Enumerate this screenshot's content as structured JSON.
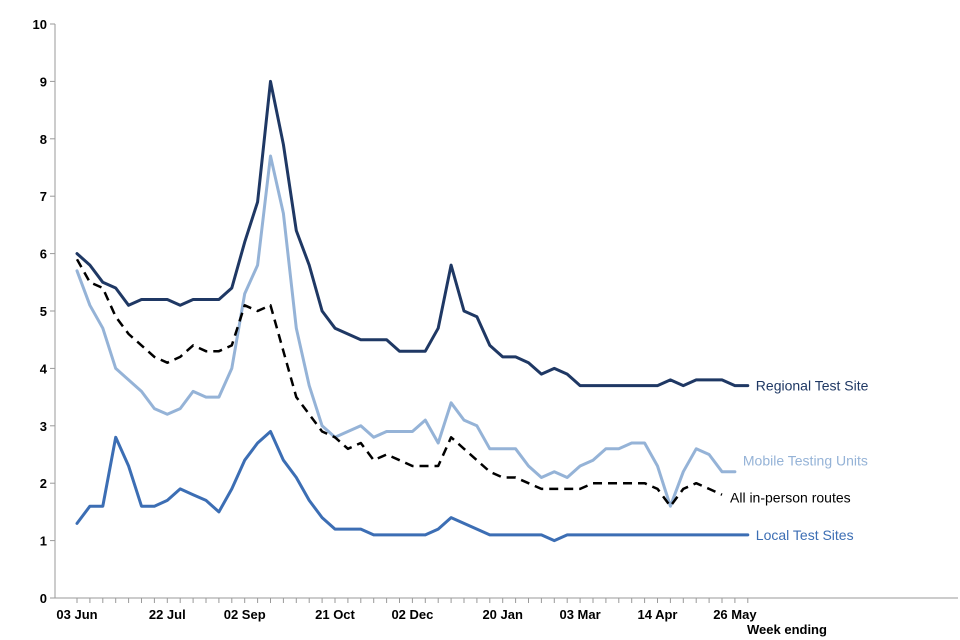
{
  "chart_data": {
    "type": "line",
    "title": "",
    "xlabel": "Week ending",
    "ylabel": "",
    "ylim": [
      0,
      10
    ],
    "yticks": [
      "0",
      "1",
      "2",
      "3",
      "4",
      "5",
      "6",
      "7",
      "8",
      "9",
      "10"
    ],
    "xtick_labels": [
      "03 Jun",
      "22 Jul",
      "02 Sep",
      "21 Oct",
      "02 Dec",
      "20 Jan",
      "03 Mar",
      "14 Apr",
      "26 May"
    ],
    "xtick_positions": [
      0,
      7,
      13,
      20,
      26,
      33,
      39,
      45,
      51
    ],
    "grid": false,
    "series": [
      {
        "name": "Regional Test Site",
        "color": "#1f3864",
        "dashed": false,
        "values": [
          6.0,
          5.8,
          5.5,
          5.4,
          5.1,
          5.2,
          5.2,
          5.2,
          5.1,
          5.2,
          5.2,
          5.2,
          5.4,
          6.2,
          6.9,
          9.0,
          7.9,
          6.4,
          5.8,
          5.0,
          4.7,
          4.6,
          4.5,
          4.5,
          4.5,
          4.3,
          4.3,
          4.3,
          4.7,
          5.8,
          5.0,
          4.9,
          4.4,
          4.2,
          4.2,
          4.1,
          3.9,
          4.0,
          3.9,
          3.7,
          3.7,
          3.7,
          3.7,
          3.7,
          3.7,
          3.7,
          3.8,
          3.7,
          3.8,
          3.8,
          3.8,
          3.7,
          3.7
        ]
      },
      {
        "name": "Mobile Testing Units",
        "color": "#95b3d7",
        "dashed": false,
        "values": [
          5.7,
          5.1,
          4.7,
          4.0,
          3.8,
          3.6,
          3.3,
          3.2,
          3.3,
          3.6,
          3.5,
          3.5,
          4.0,
          5.3,
          5.8,
          7.7,
          6.7,
          4.7,
          3.7,
          3.0,
          2.8,
          2.9,
          3.0,
          2.8,
          2.9,
          2.9,
          2.9,
          3.1,
          2.7,
          3.4,
          3.1,
          3.0,
          2.6,
          2.6,
          2.6,
          2.3,
          2.1,
          2.2,
          2.1,
          2.3,
          2.4,
          2.6,
          2.6,
          2.7,
          2.7,
          2.3,
          1.6,
          2.2,
          2.6,
          2.5,
          2.2,
          2.2
        ]
      },
      {
        "name": "All in-person routes",
        "color": "#000000",
        "dashed": true,
        "values": [
          5.9,
          5.5,
          5.4,
          4.9,
          4.6,
          4.4,
          4.2,
          4.1,
          4.2,
          4.4,
          4.3,
          4.3,
          4.4,
          5.1,
          5.0,
          5.1,
          4.3,
          3.5,
          3.2,
          2.9,
          2.8,
          2.6,
          2.7,
          2.4,
          2.5,
          2.4,
          2.3,
          2.3,
          2.3,
          2.8,
          2.6,
          2.4,
          2.2,
          2.1,
          2.1,
          2.0,
          1.9,
          1.9,
          1.9,
          1.9,
          2.0,
          2.0,
          2.0,
          2.0,
          2.0,
          1.9,
          1.6,
          1.9,
          2.0,
          1.9,
          1.8
        ]
      },
      {
        "name": "Local Test Sites",
        "color": "#3c6eb4",
        "dashed": false,
        "values": [
          1.3,
          1.6,
          1.6,
          2.8,
          2.3,
          1.6,
          1.6,
          1.7,
          1.9,
          1.8,
          1.7,
          1.5,
          1.9,
          2.4,
          2.7,
          2.9,
          2.4,
          2.1,
          1.7,
          1.4,
          1.2,
          1.2,
          1.2,
          1.1,
          1.1,
          1.1,
          1.1,
          1.1,
          1.2,
          1.4,
          1.3,
          1.2,
          1.1,
          1.1,
          1.1,
          1.1,
          1.1,
          1.0,
          1.1,
          1.1,
          1.1,
          1.1,
          1.1,
          1.1,
          1.1,
          1.1,
          1.1,
          1.1,
          1.1,
          1.1,
          1.1,
          1.1,
          1.1
        ]
      }
    ]
  }
}
